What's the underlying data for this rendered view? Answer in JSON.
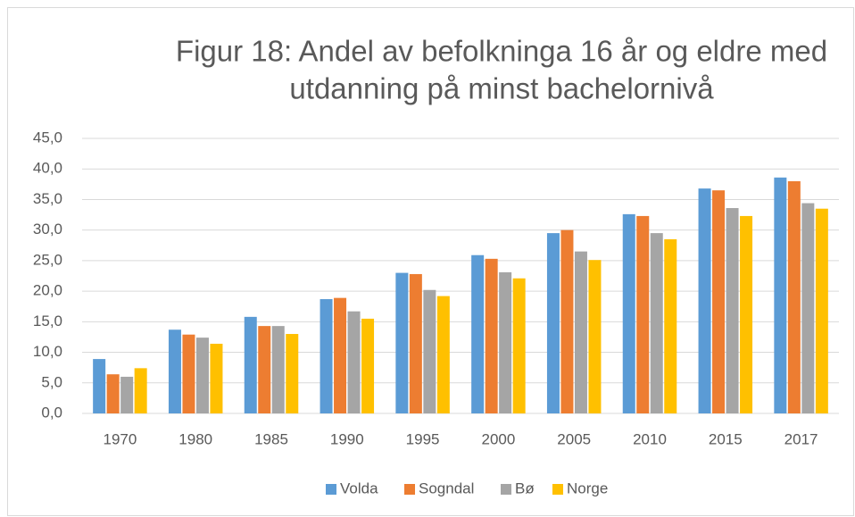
{
  "chart_data": {
    "type": "bar",
    "title": [
      "Figur 18: Andel av befolkninga 16 år og eldre med",
      "utdanning på minst bachelornivå"
    ],
    "categories": [
      "1970",
      "1980",
      "1985",
      "1990",
      "1995",
      "2000",
      "2005",
      "2010",
      "2015",
      "2017"
    ],
    "series": [
      {
        "name": "Volda",
        "color": "#5b9bd5",
        "values": [
          8.9,
          13.7,
          15.8,
          18.7,
          23.0,
          25.9,
          29.5,
          32.6,
          36.8,
          38.6
        ]
      },
      {
        "name": "Sogndal",
        "color": "#ed7d31",
        "values": [
          6.4,
          12.9,
          14.3,
          18.9,
          22.8,
          25.3,
          30.0,
          32.3,
          36.5,
          38.0
        ]
      },
      {
        "name": "Bø",
        "color": "#a5a5a5",
        "values": [
          6.0,
          12.4,
          14.3,
          16.7,
          20.2,
          23.1,
          26.5,
          29.5,
          33.6,
          34.4
        ]
      },
      {
        "name": "Norge",
        "color": "#ffc000",
        "values": [
          7.4,
          11.4,
          13.0,
          15.5,
          19.2,
          22.1,
          25.1,
          28.5,
          32.3,
          33.5
        ]
      }
    ],
    "ylim": [
      0,
      45
    ],
    "yticks": [
      {
        "value": 0,
        "label": "0,0"
      },
      {
        "value": 5,
        "label": "5,0"
      },
      {
        "value": 10,
        "label": "10,0"
      },
      {
        "value": 15,
        "label": "15,0"
      },
      {
        "value": 20,
        "label": "20,0"
      },
      {
        "value": 25,
        "label": "25,0"
      },
      {
        "value": 30,
        "label": "30,0"
      },
      {
        "value": 35,
        "label": "35,0"
      },
      {
        "value": 40,
        "label": "40,0"
      },
      {
        "value": 45,
        "label": "45,0"
      }
    ],
    "grid": true,
    "legend": "bottom"
  }
}
